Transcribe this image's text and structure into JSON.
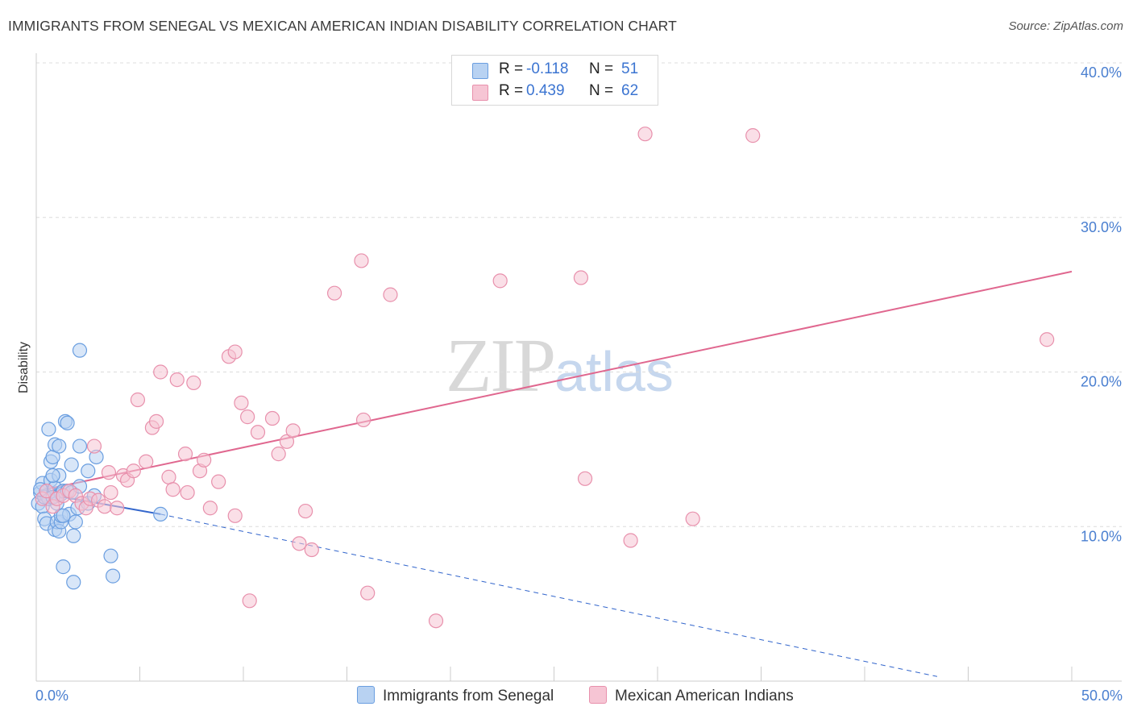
{
  "title": "IMMIGRANTS FROM SENEGAL VS MEXICAN AMERICAN INDIAN DISABILITY CORRELATION CHART",
  "source": "Source: ZipAtlas.com",
  "watermark": {
    "zip": "ZIP",
    "atlas": "atlas"
  },
  "colors": {
    "blue": "#6a9ee0",
    "blue_fill": "#b8d2f2",
    "blue_line": "#3366cc",
    "pink": "#e890ac",
    "pink_fill": "#f6c5d4",
    "pink_line": "#e0678f",
    "axis_text": "#4a7fd0",
    "grid": "#dcdcdc"
  },
  "legend": {
    "rows": [
      {
        "r_label": "R =",
        "r_value": "-0.118",
        "n_label": "N =",
        "n_value": "51"
      },
      {
        "r_label": "R =",
        "r_value": "0.439",
        "n_label": "N =",
        "n_value": "62"
      }
    ]
  },
  "bottom_legend": {
    "series1": "Immigrants from Senegal",
    "series2": "Mexican American Indians"
  },
  "chart_data": {
    "type": "scatter",
    "title": "IMMIGRANTS FROM SENEGAL VS MEXICAN AMERICAN INDIAN DISABILITY CORRELATION CHART",
    "xlabel": "",
    "ylabel": "Disability",
    "xlim": [
      0,
      50
    ],
    "ylim": [
      0,
      40
    ],
    "x_tick_labels": [
      "0.0%",
      "50.0%"
    ],
    "y_ticks": [
      10,
      20,
      30,
      40
    ],
    "y_tick_labels": [
      "10.0%",
      "20.0%",
      "30.0%",
      "40.0%"
    ],
    "grid": true,
    "legend_position": "top-center",
    "series": [
      {
        "name": "Immigrants from Senegal",
        "color": "#6a9ee0",
        "R": -0.118,
        "N": 51,
        "trend": {
          "x": [
            0.1,
            6.0
          ],
          "y": [
            12.2,
            10.8
          ],
          "dashed_extension_to": [
            43.5,
            0.3
          ]
        },
        "points": [
          [
            0.1,
            11.5
          ],
          [
            0.2,
            12.2
          ],
          [
            0.3,
            12.8
          ],
          [
            0.3,
            11.3
          ],
          [
            0.4,
            10.5
          ],
          [
            0.5,
            12.0
          ],
          [
            0.5,
            10.2
          ],
          [
            0.6,
            11.8
          ],
          [
            0.7,
            13.0
          ],
          [
            0.7,
            14.2
          ],
          [
            0.8,
            14.5
          ],
          [
            0.6,
            16.3
          ],
          [
            0.9,
            15.3
          ],
          [
            0.9,
            12.5
          ],
          [
            1.0,
            12.0
          ],
          [
            1.0,
            11.5
          ],
          [
            1.1,
            15.2
          ],
          [
            1.1,
            13.3
          ],
          [
            1.2,
            12.1
          ],
          [
            0.8,
            13.3
          ],
          [
            0.9,
            9.8
          ],
          [
            1.0,
            10.3
          ],
          [
            1.1,
            9.7
          ],
          [
            1.2,
            10.3
          ],
          [
            1.2,
            10.7
          ],
          [
            1.3,
            12.3
          ],
          [
            1.3,
            7.4
          ],
          [
            1.4,
            16.8
          ],
          [
            1.5,
            16.7
          ],
          [
            1.5,
            12.3
          ],
          [
            1.6,
            10.8
          ],
          [
            1.7,
            12.2
          ],
          [
            1.3,
            10.7
          ],
          [
            1.8,
            6.4
          ],
          [
            1.8,
            9.4
          ],
          [
            1.7,
            14.0
          ],
          [
            1.9,
            10.3
          ],
          [
            2.0,
            11.2
          ],
          [
            2.1,
            12.6
          ],
          [
            2.1,
            15.2
          ],
          [
            2.1,
            21.4
          ],
          [
            2.5,
            11.5
          ],
          [
            2.5,
            13.6
          ],
          [
            2.8,
            12.0
          ],
          [
            2.9,
            14.5
          ],
          [
            3.6,
            8.1
          ],
          [
            3.7,
            6.8
          ],
          [
            6.0,
            10.8
          ],
          [
            0.4,
            11.9
          ],
          [
            0.2,
            12.4
          ],
          [
            0.8,
            11.9
          ]
        ]
      },
      {
        "name": "Mexican American Indians",
        "color": "#e890ac",
        "R": 0.439,
        "N": 62,
        "trend": {
          "x": [
            0.1,
            50.0
          ],
          "y": [
            12.3,
            26.5
          ]
        },
        "points": [
          [
            0.3,
            11.8
          ],
          [
            0.5,
            12.3
          ],
          [
            0.8,
            11.3
          ],
          [
            1.0,
            11.8
          ],
          [
            1.3,
            12.0
          ],
          [
            1.6,
            12.3
          ],
          [
            1.9,
            12.0
          ],
          [
            2.2,
            11.5
          ],
          [
            2.4,
            11.2
          ],
          [
            2.6,
            11.8
          ],
          [
            2.8,
            15.2
          ],
          [
            3.0,
            11.7
          ],
          [
            3.3,
            11.3
          ],
          [
            3.5,
            13.5
          ],
          [
            3.6,
            12.2
          ],
          [
            3.9,
            11.2
          ],
          [
            4.2,
            13.3
          ],
          [
            4.4,
            13.0
          ],
          [
            4.7,
            13.6
          ],
          [
            4.9,
            18.2
          ],
          [
            5.3,
            14.2
          ],
          [
            5.6,
            16.4
          ],
          [
            5.8,
            16.8
          ],
          [
            6.0,
            20.0
          ],
          [
            6.4,
            13.2
          ],
          [
            6.6,
            12.4
          ],
          [
            6.8,
            19.5
          ],
          [
            7.2,
            14.7
          ],
          [
            7.3,
            12.2
          ],
          [
            7.6,
            19.3
          ],
          [
            7.9,
            13.6
          ],
          [
            8.1,
            14.3
          ],
          [
            8.4,
            11.2
          ],
          [
            8.8,
            12.9
          ],
          [
            9.3,
            21.0
          ],
          [
            9.6,
            21.3
          ],
          [
            9.6,
            10.7
          ],
          [
            9.9,
            18.0
          ],
          [
            10.2,
            17.1
          ],
          [
            10.3,
            5.2
          ],
          [
            10.7,
            16.1
          ],
          [
            11.4,
            17.0
          ],
          [
            11.7,
            14.7
          ],
          [
            12.1,
            15.5
          ],
          [
            12.4,
            16.2
          ],
          [
            12.7,
            8.9
          ],
          [
            13.0,
            11.0
          ],
          [
            13.3,
            8.5
          ],
          [
            14.4,
            25.1
          ],
          [
            15.7,
            27.2
          ],
          [
            15.8,
            16.9
          ],
          [
            16.0,
            5.7
          ],
          [
            17.1,
            25.0
          ],
          [
            19.3,
            3.9
          ],
          [
            22.4,
            25.9
          ],
          [
            26.3,
            26.1
          ],
          [
            26.5,
            13.1
          ],
          [
            28.7,
            9.1
          ],
          [
            29.4,
            35.4
          ],
          [
            31.7,
            10.5
          ],
          [
            34.6,
            35.3
          ],
          [
            48.8,
            22.1
          ]
        ]
      }
    ]
  }
}
